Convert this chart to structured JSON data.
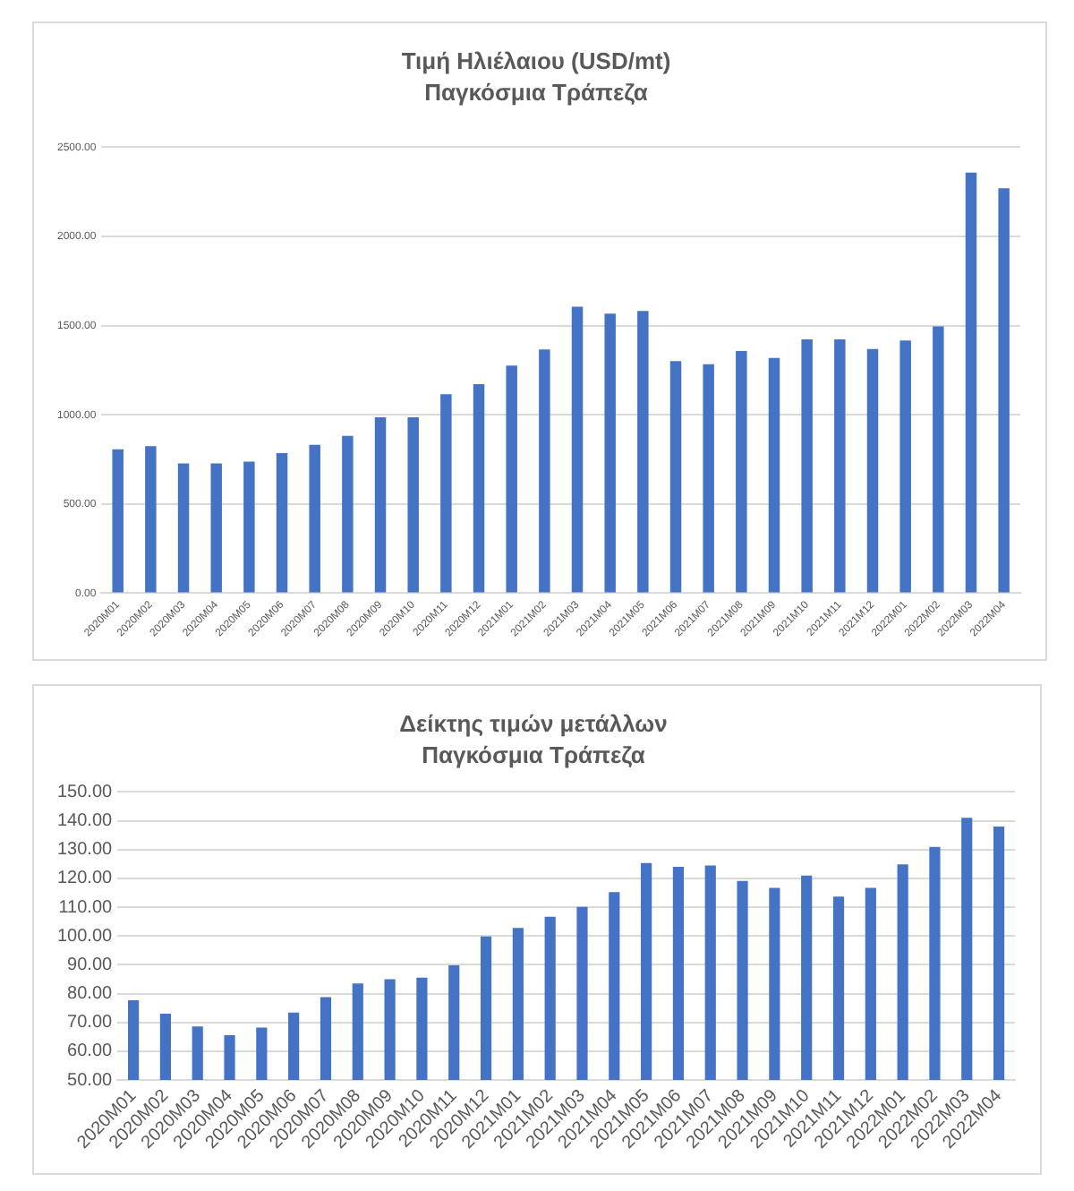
{
  "chart_data": [
    {
      "type": "bar",
      "title": "Τιμή Ηλιέλαιου (USD/mt)",
      "subtitle": "Παγκόσμια Τράπεζα",
      "categories": [
        "2020M01",
        "2020M02",
        "2020M03",
        "2020M04",
        "2020M05",
        "2020M06",
        "2020M07",
        "2020M08",
        "2020M09",
        "2020M10",
        "2020M11",
        "2020M12",
        "2021M01",
        "2021M02",
        "2021M03",
        "2021M04",
        "2021M05",
        "2021M06",
        "2021M07",
        "2021M08",
        "2021M09",
        "2021M10",
        "2021M11",
        "2021M12",
        "2022M01",
        "2022M02",
        "2022M03",
        "2022M04"
      ],
      "values": [
        806,
        824,
        728,
        728,
        738,
        785,
        832,
        882,
        986,
        986,
        1115,
        1172,
        1276,
        1366,
        1606,
        1567,
        1582,
        1301,
        1283,
        1358,
        1319,
        1423,
        1423,
        1369,
        1416,
        1496,
        2358,
        2270
      ],
      "color": "#4472c4",
      "ylim": [
        0,
        2500
      ],
      "yticks": [
        {
          "value": 0,
          "label": "0.00"
        },
        {
          "value": 500,
          "label": "500.00"
        },
        {
          "value": 1000,
          "label": "1000.00"
        },
        {
          "value": 1500,
          "label": "1500.00"
        },
        {
          "value": 2000,
          "label": "2000.00"
        },
        {
          "value": 2500,
          "label": "2500.00"
        }
      ],
      "grid": "y"
    },
    {
      "type": "bar",
      "title": "Δείκτης τιμών μετάλλων",
      "subtitle": "Παγκόσμια Τράπεζα",
      "categories": [
        "2020M01",
        "2020M02",
        "2020M03",
        "2020M04",
        "2020M05",
        "2020M06",
        "2020M07",
        "2020M08",
        "2020M09",
        "2020M10",
        "2020M11",
        "2020M12",
        "2021M01",
        "2021M02",
        "2021M03",
        "2021M04",
        "2021M05",
        "2021M06",
        "2021M07",
        "2021M08",
        "2021M09",
        "2021M10",
        "2021M11",
        "2021M12",
        "2022M01",
        "2022M02",
        "2022M03",
        "2022M04"
      ],
      "values": [
        77.7,
        73,
        68.6,
        65.6,
        68.2,
        73.4,
        78.8,
        83.5,
        85,
        85.5,
        89.8,
        99.8,
        102.8,
        106.7,
        110.1,
        115.2,
        125.3,
        124,
        124.5,
        119.1,
        116.7,
        121,
        113.7,
        116.7,
        124.9,
        130.9,
        141,
        138
      ],
      "color": "#4472c4",
      "ylim": [
        50,
        150
      ],
      "yticks": [
        {
          "value": 50,
          "label": "50.00"
        },
        {
          "value": 60,
          "label": "60.00"
        },
        {
          "value": 70,
          "label": "70.00"
        },
        {
          "value": 80,
          "label": "80.00"
        },
        {
          "value": 90,
          "label": "90.00"
        },
        {
          "value": 100,
          "label": "100.00"
        },
        {
          "value": 110,
          "label": "110.00"
        },
        {
          "value": 120,
          "label": "120.00"
        },
        {
          "value": 130,
          "label": "130.00"
        },
        {
          "value": 140,
          "label": "140.00"
        },
        {
          "value": 150,
          "label": "150.00"
        }
      ],
      "grid": "y"
    }
  ]
}
